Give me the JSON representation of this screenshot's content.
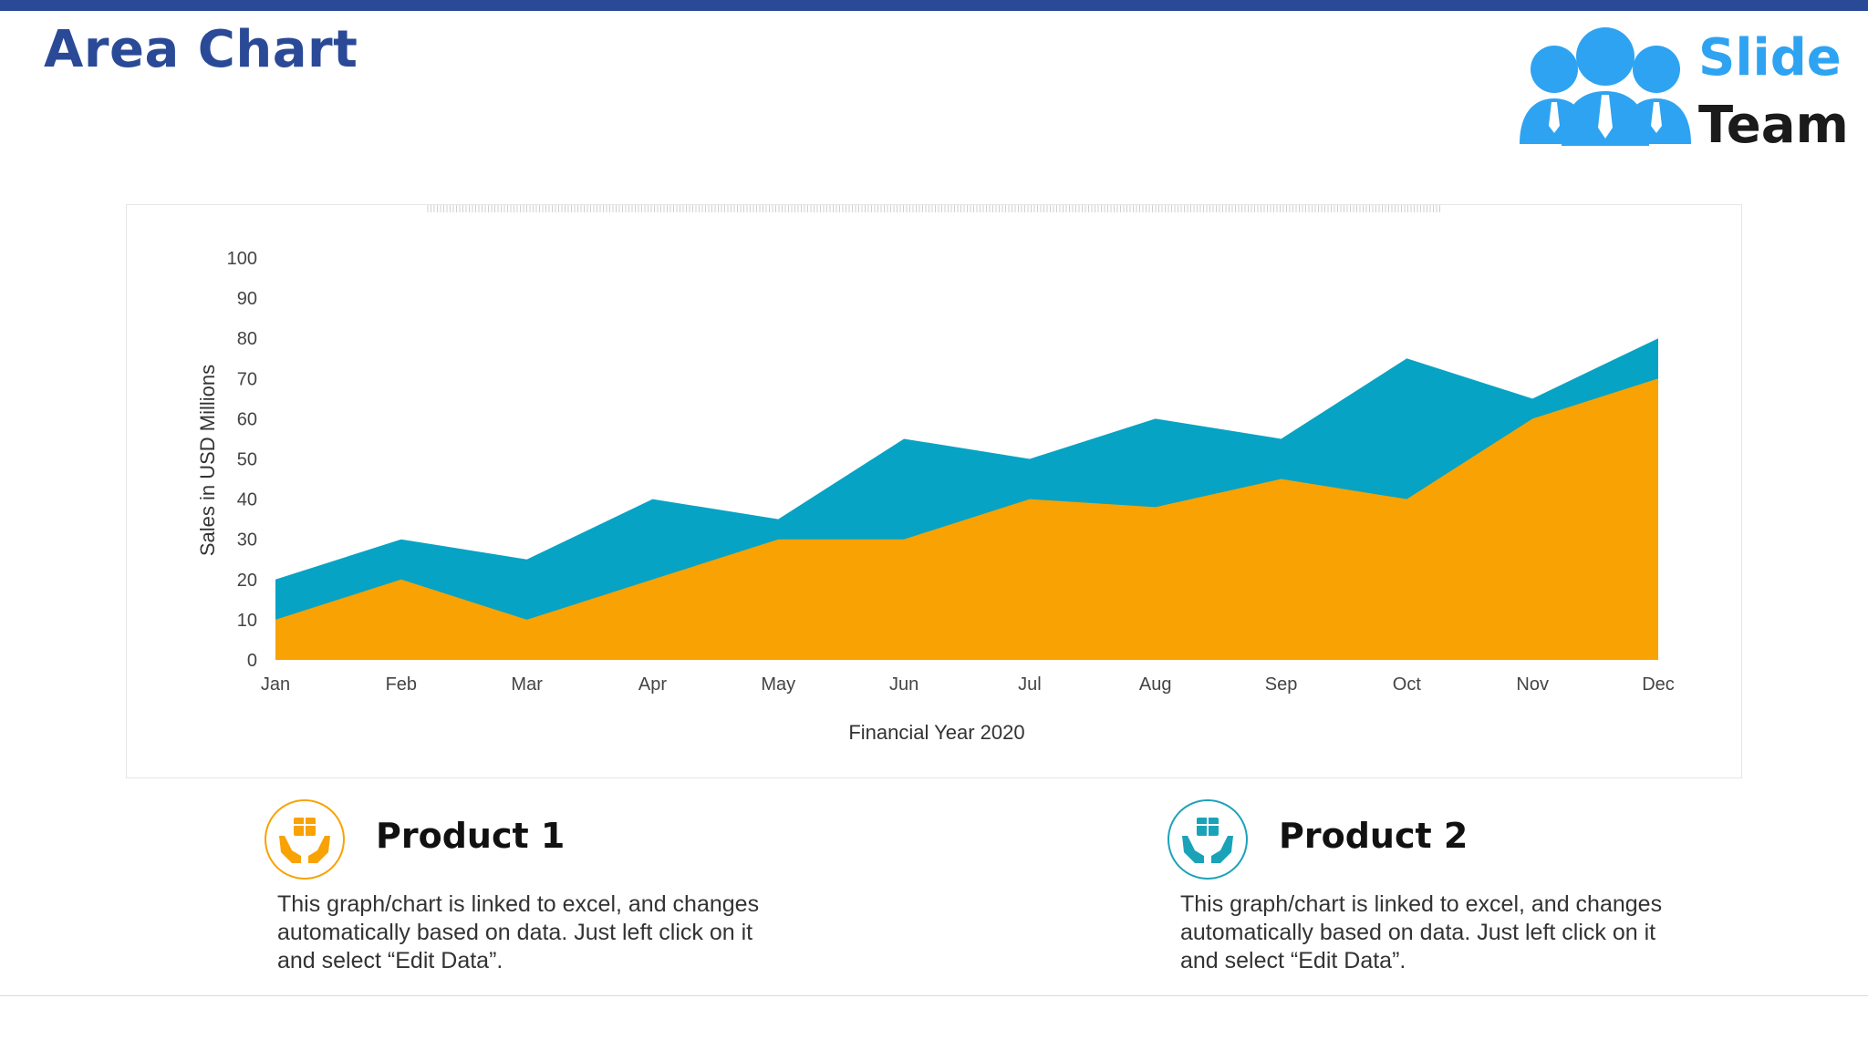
{
  "page": {
    "title": "Area Chart"
  },
  "logo": {
    "word1": "Slide",
    "word2": "Team",
    "colors": {
      "figures": "#2ea3f2",
      "word1": "#2ea3f2",
      "word2": "#1b1b1b"
    }
  },
  "chart_data": {
    "type": "area",
    "stacked": false,
    "categories": [
      "Jan",
      "Feb",
      "Mar",
      "Apr",
      "May",
      "Jun",
      "Jul",
      "Aug",
      "Sep",
      "Oct",
      "Nov",
      "Dec"
    ],
    "series": [
      {
        "values": [
          20,
          30,
          25,
          40,
          35,
          55,
          50,
          60,
          55,
          75,
          65,
          80
        ],
        "color": "#06a3c4"
      },
      {
        "values": [
          10,
          20,
          10,
          20,
          30,
          30,
          40,
          38,
          45,
          40,
          60,
          70
        ],
        "color": "#f8a203"
      }
    ],
    "xlabel": "Financial Year 2020",
    "ylabel": "Sales in USD Millions",
    "ylim": [
      0,
      100
    ],
    "yticks": [
      0,
      10,
      20,
      30,
      40,
      50,
      60,
      70,
      80,
      90,
      100
    ],
    "grid": false,
    "legend": "none"
  },
  "products": [
    {
      "title": "Product 1",
      "description": "This graph/chart is linked to excel, and changes automatically based on data. Just left click on it and select “Edit Data”.",
      "icon": "hands-gift-icon",
      "color": "#f8a203"
    },
    {
      "title": "Product 2",
      "description": "This graph/chart is linked to excel, and changes automatically based on data. Just left click on it and select “Edit Data”.",
      "icon": "hands-gift-icon",
      "color": "#1aa3b8"
    }
  ]
}
